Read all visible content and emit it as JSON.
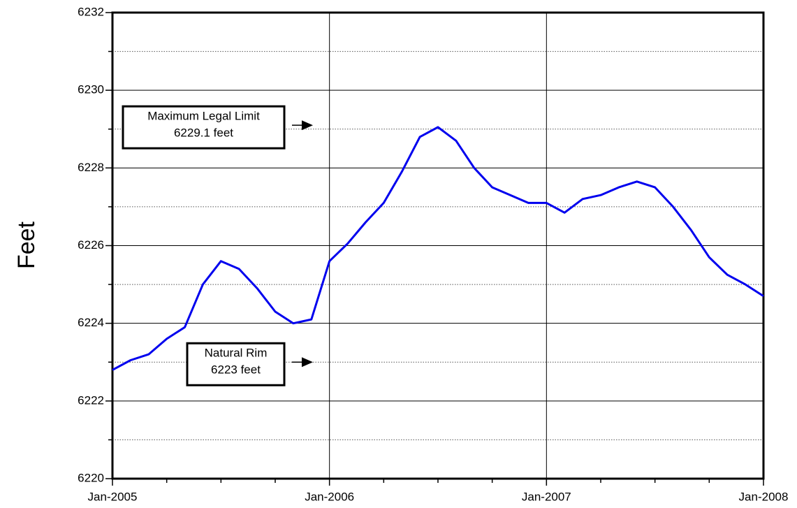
{
  "chart_data": {
    "type": "line",
    "y_label": "Feet",
    "x": [
      "2005-01",
      "2005-02",
      "2005-03",
      "2005-04",
      "2005-05",
      "2005-06",
      "2005-07",
      "2005-08",
      "2005-09",
      "2005-10",
      "2005-11",
      "2005-12",
      "2006-01",
      "2006-02",
      "2006-03",
      "2006-04",
      "2006-05",
      "2006-06",
      "2006-07",
      "2006-08",
      "2006-09",
      "2006-10",
      "2006-11",
      "2006-12",
      "2007-01",
      "2007-02",
      "2007-03",
      "2007-04",
      "2007-05",
      "2007-06",
      "2007-07",
      "2007-08",
      "2007-09",
      "2007-10",
      "2007-11",
      "2007-12",
      "2008-01"
    ],
    "series": [
      {
        "color": "#0000ee",
        "values": [
          6222.8,
          6223.05,
          6223.2,
          6223.6,
          6223.9,
          6225.0,
          6225.6,
          6225.4,
          6224.9,
          6224.3,
          6224.0,
          6224.1,
          6225.6,
          6226.05,
          6226.6,
          6227.1,
          6227.9,
          6228.8,
          6229.05,
          6228.7,
          6228.0,
          6227.5,
          6227.3,
          6227.1,
          6227.1,
          6226.85,
          6227.2,
          6227.3,
          6227.5,
          6227.65,
          6227.5,
          6227.0,
          6226.4,
          6225.7,
          6225.25,
          6225.0,
          6224.7
        ]
      }
    ],
    "xlim": [
      "2005-01",
      "2008-01"
    ],
    "xticks": [
      {
        "value": "2005-01",
        "label": "Jan-2005"
      },
      {
        "value": "2006-01",
        "label": "Jan-2006"
      },
      {
        "value": "2007-01",
        "label": "Jan-2007"
      },
      {
        "value": "2008-01",
        "label": "Jan-2008"
      }
    ],
    "xminorticks": [
      "2005-04",
      "2005-07",
      "2005-10",
      "2006-04",
      "2006-07",
      "2006-10",
      "2007-04",
      "2007-07",
      "2007-10"
    ],
    "ylim": [
      6220,
      6232
    ],
    "yticks": [
      6220,
      6222,
      6224,
      6226,
      6228,
      6230,
      6232
    ],
    "yminorticks": [
      6221,
      6223,
      6225,
      6227,
      6229,
      6231
    ],
    "grid": true,
    "annotations": [
      {
        "lines": [
          "Maximum Legal Limit",
          "6229.1 feet"
        ],
        "y": 6229.1
      },
      {
        "lines": [
          "Natural Rim",
          "6223 feet"
        ],
        "y": 6223
      }
    ]
  }
}
